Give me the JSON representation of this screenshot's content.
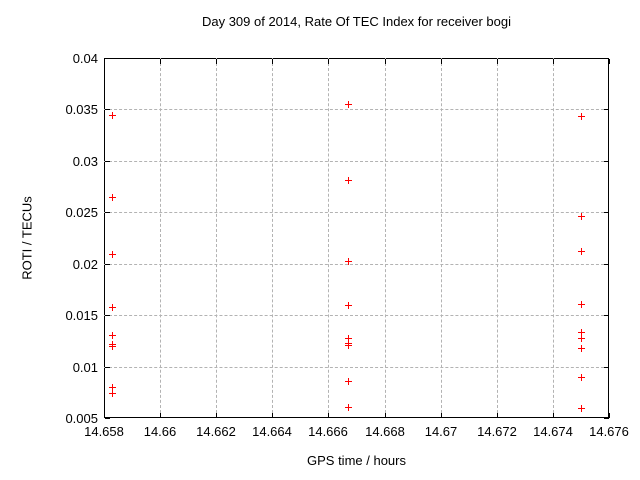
{
  "chart_data": {
    "type": "scatter",
    "title": "Day 309 of 2014, Rate Of TEC Index for receiver bogi",
    "xlabel": "GPS time / hours",
    "ylabel": "ROTI / TECUs",
    "xlim": [
      14.658,
      14.676
    ],
    "ylim": [
      0.005,
      0.04
    ],
    "x_ticks": [
      14.658,
      14.66,
      14.662,
      14.664,
      14.666,
      14.668,
      14.67,
      14.672,
      14.674,
      14.676
    ],
    "x_tick_labels": [
      "14.658",
      "14.66",
      "14.662",
      "14.664",
      "14.666",
      "14.668",
      "14.67",
      "14.672",
      "14.674",
      "14.676"
    ],
    "y_ticks": [
      0.005,
      0.01,
      0.015,
      0.02,
      0.025,
      0.03,
      0.035,
      0.04
    ],
    "y_tick_labels": [
      "0.005",
      "0.01",
      "0.015",
      "0.02",
      "0.025",
      "0.03",
      "0.035",
      "0.04"
    ],
    "grid": true,
    "legend": "none",
    "marker": {
      "glyph": "plus",
      "color": "#ff0000"
    },
    "series": [
      {
        "name": "ROTI",
        "points": [
          [
            14.6583,
            0.0345
          ],
          [
            14.6583,
            0.0265
          ],
          [
            14.6583,
            0.0209
          ],
          [
            14.6583,
            0.0158
          ],
          [
            14.6583,
            0.0131
          ],
          [
            14.6583,
            0.0122
          ],
          [
            14.6583,
            0.012
          ],
          [
            14.6583,
            0.008
          ],
          [
            14.6583,
            0.0074
          ],
          [
            14.6667,
            0.0355
          ],
          [
            14.6667,
            0.0281
          ],
          [
            14.6667,
            0.0203
          ],
          [
            14.6667,
            0.016
          ],
          [
            14.6667,
            0.0128
          ],
          [
            14.6667,
            0.0123
          ],
          [
            14.6667,
            0.0121
          ],
          [
            14.6667,
            0.0086
          ],
          [
            14.6667,
            0.0061
          ],
          [
            14.675,
            0.0344
          ],
          [
            14.675,
            0.0246
          ],
          [
            14.675,
            0.0212
          ],
          [
            14.675,
            0.0161
          ],
          [
            14.675,
            0.0134
          ],
          [
            14.675,
            0.0128
          ],
          [
            14.675,
            0.0118
          ],
          [
            14.675,
            0.009
          ],
          [
            14.675,
            0.006
          ]
        ]
      }
    ]
  },
  "colors": {
    "marker": "#ff0000",
    "grid": "#b3b3b3",
    "border": "#000000",
    "text": "#000000",
    "background": "#ffffff"
  }
}
